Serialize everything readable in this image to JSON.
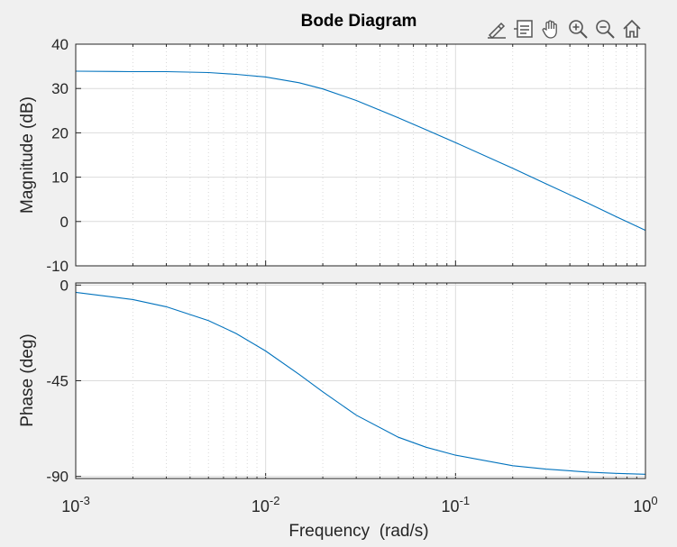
{
  "chart_data": {
    "type": "line",
    "title": "Bode Diagram",
    "xlabel": "Frequency  (rad/s)",
    "x_scale": "log",
    "xlim": [
      0.001,
      1
    ],
    "x_ticks": [
      {
        "value": 0.001,
        "base": "10",
        "exp": "-3"
      },
      {
        "value": 0.01,
        "base": "10",
        "exp": "-2"
      },
      {
        "value": 0.1,
        "base": "10",
        "exp": "-1"
      },
      {
        "value": 1,
        "base": "10",
        "exp": "0"
      }
    ],
    "grid": true,
    "line_color": "#0072bd",
    "panels": [
      {
        "name": "magnitude",
        "ylabel": "Magnitude (dB)",
        "ylim": [
          -10,
          40
        ],
        "y_ticks": [
          "-10",
          "0",
          "10",
          "20",
          "30",
          "40"
        ],
        "series": [
          {
            "x": [
              0.001,
              0.002,
              0.003,
              0.005,
              0.007,
              0.01,
              0.015,
              0.02,
              0.03,
              0.05,
              0.07,
              0.1,
              0.2,
              0.3,
              0.5,
              0.7,
              1
            ],
            "y": [
              33.9,
              33.8,
              33.8,
              33.6,
              33.2,
              32.6,
              31.3,
              29.9,
              27.3,
              23.4,
              20.7,
              17.8,
              12.0,
              8.5,
              4.1,
              1.1,
              -2.0
            ]
          }
        ]
      },
      {
        "name": "phase",
        "ylabel": "Phase (deg)",
        "ylim": [
          -91,
          1
        ],
        "y_ticks": [
          "-90",
          "-45",
          "0"
        ],
        "series": [
          {
            "x": [
              0.001,
              0.002,
              0.003,
              0.005,
              0.007,
              0.01,
              0.015,
              0.02,
              0.03,
              0.05,
              0.07,
              0.1,
              0.2,
              0.3,
              0.5,
              0.7,
              1
            ],
            "y": [
              -3.4,
              -6.8,
              -10.2,
              -16.7,
              -22.8,
              -31.0,
              -42.0,
              -50.2,
              -61.2,
              -71.6,
              -76.3,
              -80.0,
              -85.0,
              -86.6,
              -88.0,
              -88.6,
              -89.0
            ]
          }
        ]
      }
    ]
  },
  "toolbar": {
    "buttons": [
      {
        "name": "edit-plot-button",
        "icon": "brush-icon"
      },
      {
        "name": "data-tips-button",
        "icon": "datatip-icon"
      },
      {
        "name": "pan-button",
        "icon": "hand-icon"
      },
      {
        "name": "zoom-in-button",
        "icon": "zoom-in-icon"
      },
      {
        "name": "zoom-out-button",
        "icon": "zoom-out-icon"
      },
      {
        "name": "restore-view-button",
        "icon": "home-icon"
      }
    ]
  }
}
